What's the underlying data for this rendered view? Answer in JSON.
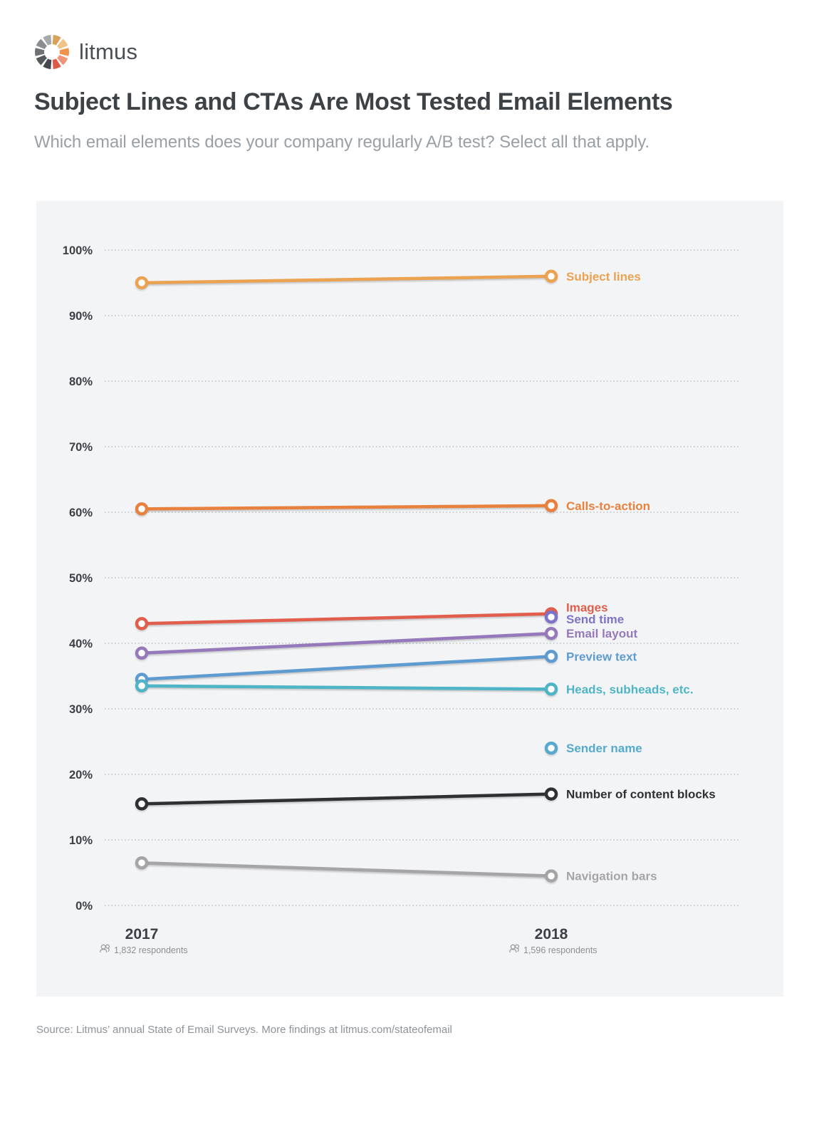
{
  "logo": {
    "wordmark": "litmus",
    "segment_colors": [
      "#D7A259",
      "#F0C489",
      "#F0944D",
      "#EF9479",
      "#DB5B4A",
      "#45484C",
      "#55585C",
      "#6E7175",
      "#8A8D91",
      "#A7AAAD"
    ]
  },
  "header": {
    "title": "Subject Lines and CTAs Are Most Tested Email Elements",
    "subtitle": "Which email elements does your company regularly A/B test? Select all that apply."
  },
  "chart_data": {
    "type": "line",
    "subtype": "slope-graph",
    "x_categories": [
      "2017",
      "2018"
    ],
    "x_sub_labels": [
      "1,832 respondents",
      "1,596 respondents"
    ],
    "ylabel": "",
    "xlabel": "",
    "ylim": [
      0,
      100
    ],
    "y_tick_step": 10,
    "y_tick_suffix": "%",
    "grid": "horizontal dotted",
    "legend_position": "right of 2018 points",
    "panel_background": "#F3F4F6",
    "series": [
      {
        "name": "Subject lines",
        "color": "#EBA251",
        "values": [
          95,
          96
        ]
      },
      {
        "name": "Calls-to-action",
        "color": "#E8813D",
        "values": [
          60.5,
          61
        ]
      },
      {
        "name": "Images",
        "color": "#E05E4B",
        "values": [
          43,
          44.5
        ],
        "label_dy": -9
      },
      {
        "name": "Send time",
        "color": "#7C74C9",
        "values": [
          null,
          44
        ],
        "label_dy": 3
      },
      {
        "name": "Email layout",
        "color": "#9579BA",
        "values": [
          38.5,
          41.5
        ]
      },
      {
        "name": "Preview text",
        "color": "#5E9BD1",
        "values": [
          34.5,
          38
        ]
      },
      {
        "name": "Heads, subheads, etc.",
        "color": "#4FB5C6",
        "values": [
          33.5,
          33
        ]
      },
      {
        "name": "Sender name",
        "color": "#55AACE",
        "values": [
          null,
          24
        ]
      },
      {
        "name": "Number of content blocks",
        "color": "#2E3033",
        "values": [
          15.5,
          17
        ]
      },
      {
        "name": "Navigation bars",
        "color": "#A5A5A7",
        "values": [
          6.5,
          4.5
        ]
      }
    ]
  },
  "footer": {
    "source": "Source: Litmus’ annual State of Email Surveys. More findings at litmus.com/stateofemail"
  }
}
